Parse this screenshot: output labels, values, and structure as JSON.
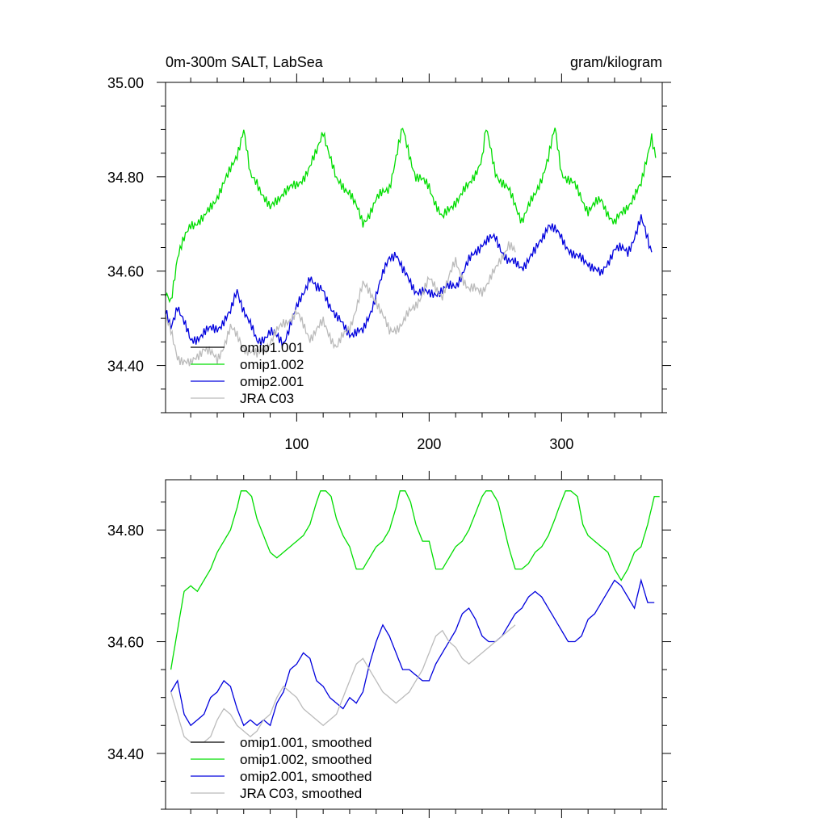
{
  "chart_data": [
    {
      "type": "line",
      "title_left": "0m-300m SALT, LabSea",
      "title_right": "gram/kilogram",
      "xlim": [
        1,
        376
      ],
      "ylim": [
        34.3,
        35.0
      ],
      "x_ticks": [
        100,
        200,
        300
      ],
      "x_tick_labels": [
        "100",
        "200",
        "300"
      ],
      "y_ticks": [
        34.4,
        34.6,
        34.8,
        35.0
      ],
      "y_tick_labels": [
        "34.40",
        "34.60",
        "34.80",
        "35.00"
      ],
      "legend_position": "bottom-left",
      "series": [
        {
          "name": "omip1.001",
          "color": "#000000",
          "x": [],
          "y": []
        },
        {
          "name": "omip1.002",
          "color": "#00dd00",
          "x": [
            1,
            5,
            10,
            20,
            30,
            40,
            48,
            55,
            60,
            65,
            70,
            80,
            90,
            100,
            110,
            115,
            120,
            130,
            140,
            150,
            160,
            170,
            175,
            180,
            190,
            200,
            210,
            220,
            230,
            240,
            243,
            250,
            260,
            270,
            280,
            290,
            295,
            300,
            310,
            320,
            330,
            340,
            350,
            360,
            368,
            371
          ],
          "y": [
            34.55,
            34.54,
            34.63,
            34.7,
            34.71,
            34.76,
            34.8,
            34.85,
            34.9,
            34.8,
            34.79,
            34.73,
            34.77,
            34.78,
            34.82,
            34.85,
            34.9,
            34.79,
            34.77,
            34.7,
            34.75,
            34.78,
            34.84,
            34.9,
            34.8,
            34.78,
            34.71,
            34.75,
            34.78,
            34.84,
            34.9,
            34.81,
            34.77,
            34.71,
            34.76,
            34.84,
            34.9,
            34.81,
            34.78,
            34.73,
            34.75,
            34.7,
            34.74,
            34.78,
            34.89,
            34.84
          ]
        },
        {
          "name": "omip2.001",
          "color": "#0000dd",
          "x": [
            1,
            5,
            10,
            20,
            30,
            40,
            50,
            55,
            60,
            70,
            80,
            90,
            100,
            110,
            115,
            120,
            130,
            140,
            150,
            160,
            170,
            175,
            180,
            190,
            200,
            210,
            220,
            230,
            240,
            250,
            260,
            270,
            280,
            290,
            300,
            310,
            320,
            330,
            340,
            350,
            360,
            368
          ],
          "y": [
            34.51,
            34.48,
            34.53,
            34.45,
            34.47,
            34.48,
            34.51,
            34.56,
            34.52,
            34.45,
            34.47,
            34.45,
            34.52,
            34.59,
            34.56,
            34.56,
            34.5,
            34.47,
            34.47,
            34.55,
            34.63,
            34.64,
            34.6,
            34.56,
            34.55,
            34.56,
            34.57,
            34.62,
            34.66,
            34.67,
            34.62,
            34.61,
            34.64,
            34.7,
            34.67,
            34.63,
            34.62,
            34.59,
            34.65,
            34.64,
            34.71,
            34.64
          ]
        },
        {
          "name": "JRA C03",
          "color": "#bbbbbb",
          "x": [
            1,
            5,
            10,
            20,
            30,
            40,
            50,
            60,
            70,
            80,
            90,
            100,
            110,
            120,
            130,
            140,
            150,
            160,
            170,
            180,
            190,
            200,
            210,
            220,
            230,
            240,
            250,
            260,
            265
          ],
          "y": [
            34.5,
            34.47,
            34.42,
            34.4,
            34.44,
            34.41,
            34.48,
            34.44,
            34.42,
            34.45,
            34.49,
            34.51,
            34.46,
            34.49,
            34.44,
            34.48,
            34.57,
            34.54,
            34.47,
            34.49,
            34.53,
            34.58,
            34.55,
            34.62,
            34.56,
            34.56,
            34.6,
            34.66,
            34.64
          ]
        }
      ]
    },
    {
      "type": "line",
      "xlim": [
        1,
        376
      ],
      "ylim": [
        34.3,
        34.89
      ],
      "x_ticks": [
        100,
        200,
        300
      ],
      "y_ticks": [
        34.4,
        34.6,
        34.8
      ],
      "y_tick_labels": [
        "34.40",
        "34.60",
        "34.80"
      ],
      "legend_position": "bottom-left",
      "series": [
        {
          "name": "omip1.001, smoothed",
          "color": "#000000",
          "x": [],
          "y": []
        },
        {
          "name": "omip1.002, smoothed",
          "color": "#00dd00",
          "x": [
            5,
            10,
            15,
            20,
            25,
            30,
            35,
            40,
            45,
            50,
            55,
            58,
            62,
            66,
            70,
            75,
            80,
            85,
            90,
            95,
            100,
            105,
            110,
            115,
            118,
            122,
            126,
            130,
            135,
            140,
            145,
            150,
            155,
            160,
            165,
            170,
            175,
            178,
            182,
            186,
            190,
            195,
            200,
            205,
            210,
            215,
            220,
            225,
            230,
            235,
            240,
            243,
            247,
            252,
            256,
            260,
            265,
            270,
            275,
            280,
            285,
            290,
            295,
            298,
            303,
            307,
            312,
            316,
            320,
            325,
            330,
            335,
            340,
            345,
            350,
            355,
            360,
            365,
            370,
            374
          ],
          "y": [
            34.55,
            34.62,
            34.69,
            34.7,
            34.69,
            34.71,
            34.73,
            34.76,
            34.78,
            34.8,
            34.84,
            34.87,
            34.87,
            34.86,
            34.82,
            34.79,
            34.76,
            34.75,
            34.76,
            34.77,
            34.78,
            34.79,
            34.81,
            34.85,
            34.87,
            34.87,
            34.86,
            34.82,
            34.79,
            34.77,
            34.73,
            34.73,
            34.75,
            34.77,
            34.78,
            34.8,
            34.84,
            34.87,
            34.87,
            34.85,
            34.81,
            34.78,
            34.78,
            34.73,
            34.73,
            34.75,
            34.77,
            34.78,
            34.8,
            34.83,
            34.86,
            34.87,
            34.87,
            34.85,
            34.81,
            34.77,
            34.73,
            34.73,
            34.74,
            34.76,
            34.77,
            34.79,
            34.82,
            34.84,
            34.87,
            34.87,
            34.86,
            34.81,
            34.79,
            34.78,
            34.77,
            34.76,
            34.73,
            34.71,
            34.73,
            34.76,
            34.77,
            34.81,
            34.86,
            34.86
          ]
        },
        {
          "name": "omip2.001, smoothed",
          "color": "#0000dd",
          "x": [
            5,
            10,
            15,
            20,
            25,
            30,
            35,
            40,
            45,
            50,
            55,
            60,
            65,
            70,
            75,
            80,
            85,
            90,
            95,
            100,
            105,
            110,
            115,
            120,
            125,
            130,
            135,
            140,
            145,
            150,
            155,
            160,
            165,
            170,
            175,
            180,
            185,
            190,
            195,
            200,
            205,
            210,
            215,
            220,
            225,
            230,
            235,
            240,
            245,
            250,
            255,
            260,
            265,
            270,
            275,
            280,
            285,
            290,
            295,
            300,
            305,
            310,
            315,
            320,
            325,
            330,
            335,
            340,
            345,
            350,
            355,
            360,
            365,
            370
          ],
          "y": [
            34.51,
            34.53,
            34.47,
            34.45,
            34.46,
            34.47,
            34.5,
            34.51,
            34.53,
            34.52,
            34.48,
            34.45,
            34.46,
            34.45,
            34.46,
            34.45,
            34.49,
            34.51,
            34.55,
            34.56,
            34.58,
            34.57,
            34.53,
            34.52,
            34.5,
            34.49,
            34.48,
            34.5,
            34.49,
            34.51,
            34.56,
            34.6,
            34.63,
            34.61,
            34.58,
            34.55,
            34.55,
            34.54,
            34.53,
            34.53,
            34.56,
            34.58,
            34.6,
            34.62,
            34.65,
            34.66,
            34.64,
            34.61,
            34.6,
            34.6,
            34.61,
            34.63,
            34.65,
            34.66,
            34.68,
            34.69,
            34.68,
            34.66,
            34.64,
            34.62,
            34.6,
            34.6,
            34.61,
            34.64,
            34.65,
            34.67,
            34.69,
            34.71,
            34.7,
            34.68,
            34.66,
            34.71,
            34.67,
            34.67
          ]
        },
        {
          "name": "JRA C03, smoothed",
          "color": "#bbbbbb",
          "x": [
            5,
            10,
            15,
            20,
            25,
            30,
            35,
            40,
            45,
            50,
            55,
            60,
            65,
            70,
            75,
            80,
            85,
            90,
            95,
            100,
            105,
            110,
            115,
            120,
            125,
            130,
            135,
            140,
            145,
            150,
            155,
            160,
            165,
            170,
            175,
            180,
            185,
            190,
            195,
            200,
            205,
            210,
            215,
            220,
            225,
            230,
            235,
            240,
            245,
            250,
            255,
            260,
            265
          ],
          "y": [
            34.51,
            34.47,
            34.43,
            34.42,
            34.42,
            34.42,
            34.43,
            34.46,
            34.48,
            34.47,
            34.45,
            34.44,
            34.43,
            34.44,
            34.46,
            34.47,
            34.5,
            34.52,
            34.51,
            34.5,
            34.48,
            34.47,
            34.46,
            34.45,
            34.46,
            34.47,
            34.5,
            34.53,
            34.56,
            34.57,
            34.55,
            34.53,
            34.51,
            34.5,
            34.49,
            34.5,
            34.51,
            34.53,
            34.55,
            34.58,
            34.61,
            34.62,
            34.6,
            34.59,
            34.57,
            34.56,
            34.57,
            34.58,
            34.59,
            34.6,
            34.61,
            34.62,
            34.63
          ]
        }
      ]
    }
  ]
}
